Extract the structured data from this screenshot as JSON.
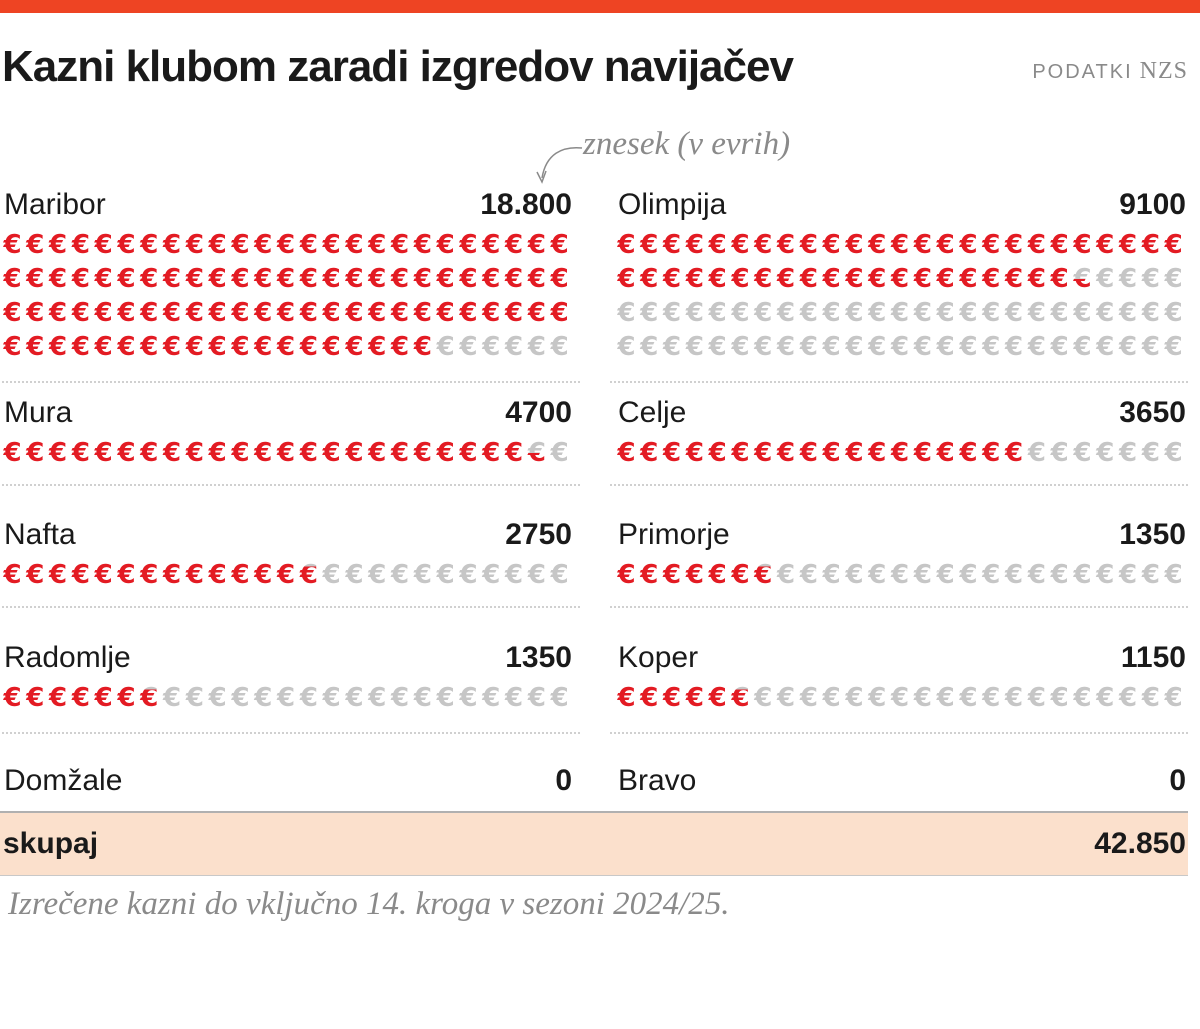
{
  "title": "Kazni klubom zaradi izgredov navijačev",
  "source": {
    "label": "PODATKI",
    "name": "NZS"
  },
  "unit_note": "znesek (v evrih)",
  "colors": {
    "accent": "#ee4423",
    "filled": "#e31b23",
    "empty": "#c6c6c6",
    "total_bg": "#fbe0cc"
  },
  "icon": "euro-sign",
  "chart_data": {
    "type": "pictogram",
    "clubs": [
      {
        "name": "Maribor",
        "label": "18.800",
        "value": 18800
      },
      {
        "name": "Olimpija",
        "label": "9100",
        "value": 9100
      },
      {
        "name": "Mura",
        "label": "4700",
        "value": 4700
      },
      {
        "name": "Celje",
        "label": "3650",
        "value": 3650
      },
      {
        "name": "Nafta",
        "label": "2750",
        "value": 2750
      },
      {
        "name": "Primorje",
        "label": "1350",
        "value": 1350
      },
      {
        "name": "Radomlje",
        "label": "1350",
        "value": 1350
      },
      {
        "name": "Koper",
        "label": "1150",
        "value": 1150
      },
      {
        "name": "Domžale",
        "label": "0",
        "value": 0
      },
      {
        "name": "Bravo",
        "label": "0",
        "value": 0
      }
    ],
    "total": {
      "label": "skupaj",
      "value": "42.850"
    }
  },
  "footnote": "Izrečene kazni do vključno 14. kroga v sezoni 2024/25."
}
